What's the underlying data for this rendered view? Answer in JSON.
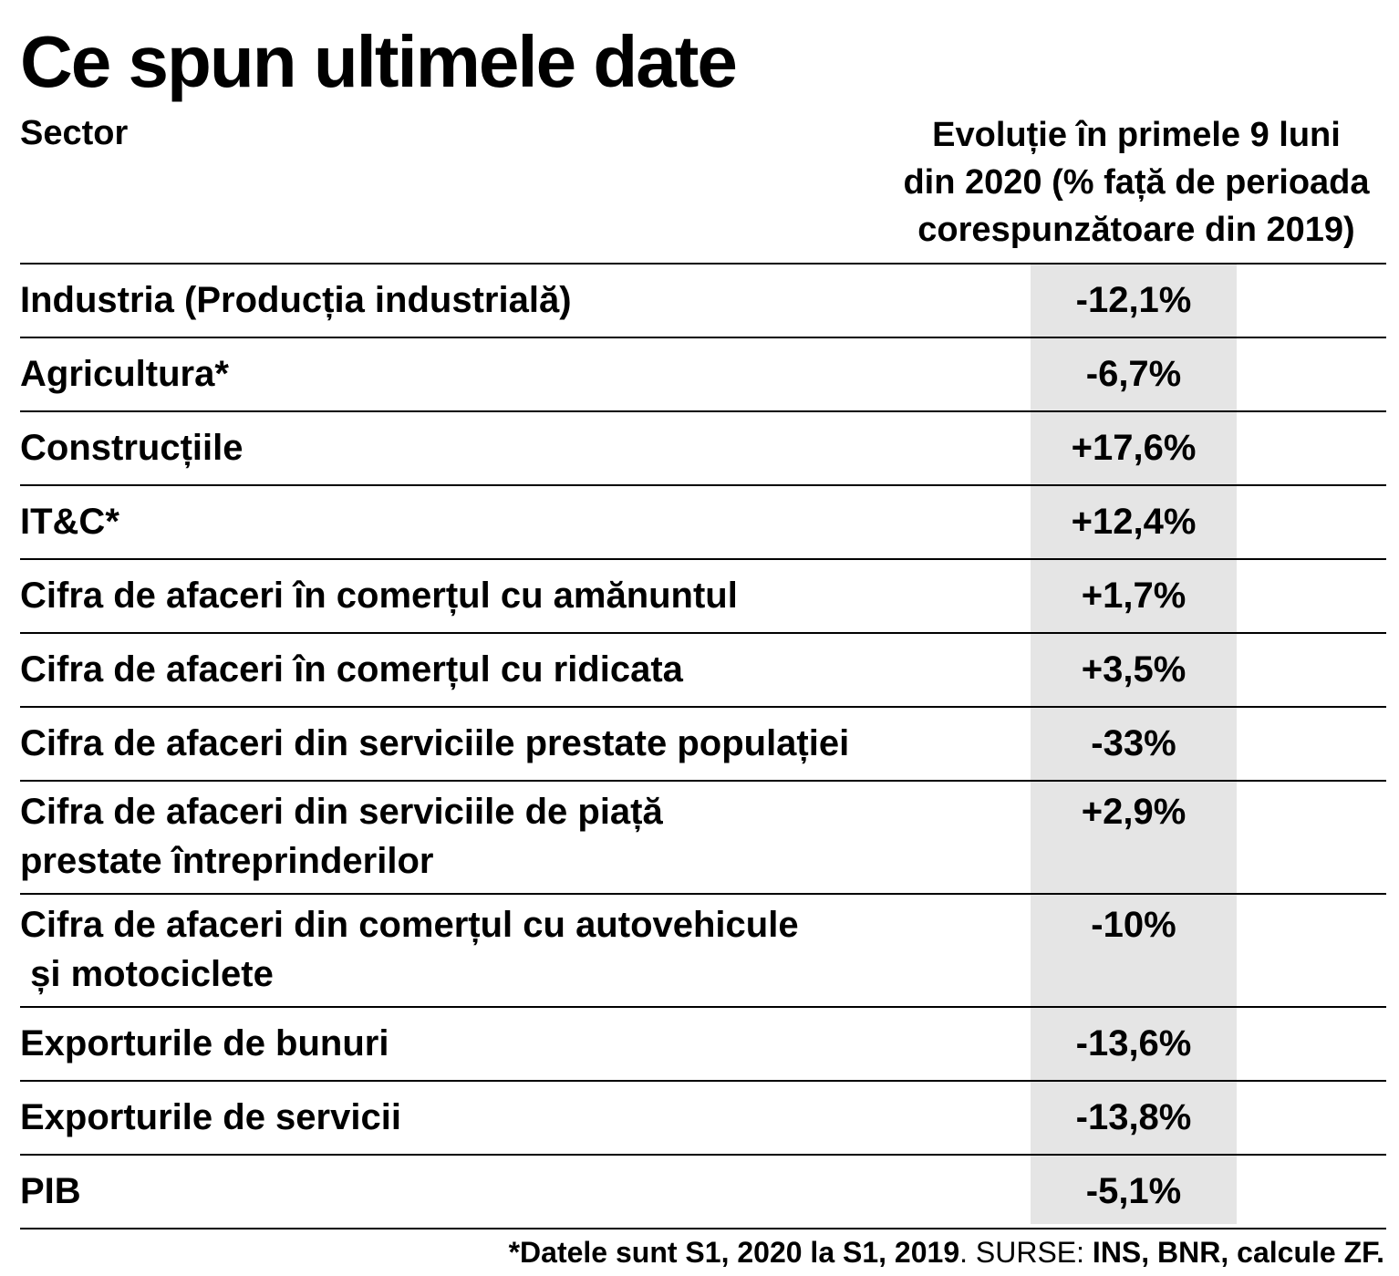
{
  "title": "Ce spun ultimele date",
  "header": {
    "sector": "Sector",
    "evolution_lines": [
      "Evoluție în primele 9 luni",
      "din 2020 (% față de perioada",
      "corespunzătoare din 2019)"
    ]
  },
  "chart_data": {
    "type": "table",
    "title": "Ce spun ultimele date",
    "columns": [
      "Sector",
      "Evoluție în primele 9 luni din 2020 (% față de perioada corespunzătoare din 2019)"
    ],
    "rows": [
      {
        "sector_lines": [
          "Industria (Producția industrială)"
        ],
        "value": "-12,1%"
      },
      {
        "sector_lines": [
          "Agricultura*"
        ],
        "value": "-6,7%"
      },
      {
        "sector_lines": [
          "Construcțiile"
        ],
        "value": "+17,6%"
      },
      {
        "sector_lines": [
          "IT&C*"
        ],
        "value": "+12,4%"
      },
      {
        "sector_lines": [
          "Cifra de afaceri în comerțul cu amănuntul"
        ],
        "value": "+1,7%"
      },
      {
        "sector_lines": [
          "Cifra de afaceri în comerțul cu ridicata"
        ],
        "value": "+3,5%"
      },
      {
        "sector_lines": [
          "Cifra de afaceri din serviciile prestate populației"
        ],
        "value": "-33%"
      },
      {
        "sector_lines": [
          "Cifra de afaceri din serviciile de piață",
          "prestate întreprinderilor"
        ],
        "value": "+2,9%"
      },
      {
        "sector_lines": [
          "Cifra de afaceri din comerțul cu autovehicule",
          " și motociclete"
        ],
        "value": "-10%"
      },
      {
        "sector_lines": [
          "Exporturile de bunuri"
        ],
        "value": "-13,6%"
      },
      {
        "sector_lines": [
          "Exporturile de servicii"
        ],
        "value": "-13,8%"
      },
      {
        "sector_lines": [
          "PIB"
        ],
        "value": "-5,1%"
      }
    ],
    "values_numeric": [
      -12.1,
      -6.7,
      17.6,
      12.4,
      1.7,
      3.5,
      -33,
      2.9,
      -10,
      -13.6,
      -13.8,
      -5.1
    ]
  },
  "footnote": {
    "note": "*Datele sunt S1, 2020 la S1, 2019",
    "sep": ". ",
    "sources_label": "SURSE: ",
    "sources": "INS, BNR, calcule ZF."
  },
  "colors": {
    "text": "#000000",
    "shade": "#e5e5e5",
    "background": "#ffffff"
  }
}
